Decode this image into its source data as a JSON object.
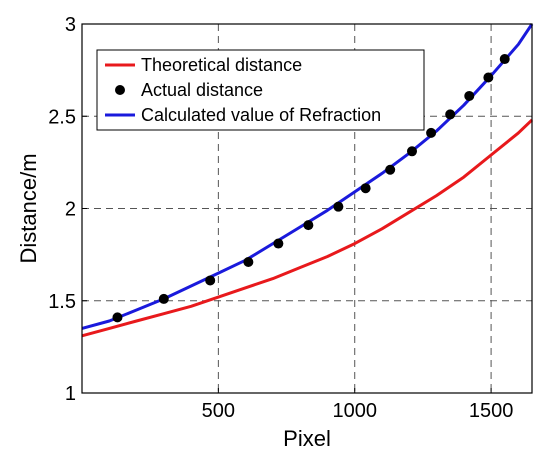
{
  "chart_data": {
    "type": "line",
    "xlabel": "Pixel",
    "ylabel": "Distance/m",
    "xlim": [
      0,
      1650
    ],
    "ylim": [
      1,
      3
    ],
    "xticks": [
      500,
      1000,
      1500
    ],
    "xtick_labels": [
      "500",
      "1000",
      "1500"
    ],
    "yticks": [
      1,
      1.5,
      2,
      2.5,
      3
    ],
    "ytick_labels": [
      "1",
      "1.5",
      "2",
      "2.5",
      "3"
    ],
    "grid": "dashed",
    "legend_position": "top-left",
    "series": [
      {
        "name": "Theoretical distance",
        "style": "line",
        "color": "#e8191c",
        "x": [
          0,
          100,
          200,
          300,
          400,
          500,
          600,
          700,
          800,
          900,
          1000,
          1100,
          1200,
          1300,
          1400,
          1500,
          1600,
          1650
        ],
        "y": [
          1.31,
          1.35,
          1.39,
          1.43,
          1.47,
          1.52,
          1.57,
          1.62,
          1.68,
          1.74,
          1.81,
          1.89,
          1.98,
          2.07,
          2.17,
          2.29,
          2.41,
          2.48
        ]
      },
      {
        "name": "Actual distance",
        "style": "markers",
        "color": "#000000",
        "x": [
          130,
          300,
          470,
          610,
          720,
          830,
          940,
          1040,
          1130,
          1210,
          1280,
          1350,
          1420,
          1490,
          1550
        ],
        "y": [
          1.41,
          1.51,
          1.61,
          1.71,
          1.81,
          1.91,
          2.01,
          2.11,
          2.21,
          2.31,
          2.41,
          2.51,
          2.61,
          2.71,
          2.81
        ]
      },
      {
        "name": "Calculated value of Refraction",
        "style": "line",
        "color": "#1a1adc",
        "x": [
          0,
          100,
          200,
          300,
          400,
          500,
          600,
          700,
          800,
          900,
          1000,
          1100,
          1200,
          1300,
          1400,
          1500,
          1600,
          1650
        ],
        "y": [
          1.35,
          1.39,
          1.45,
          1.51,
          1.58,
          1.65,
          1.72,
          1.81,
          1.9,
          1.99,
          2.09,
          2.19,
          2.3,
          2.42,
          2.56,
          2.72,
          2.89,
          3.0
        ]
      }
    ]
  }
}
